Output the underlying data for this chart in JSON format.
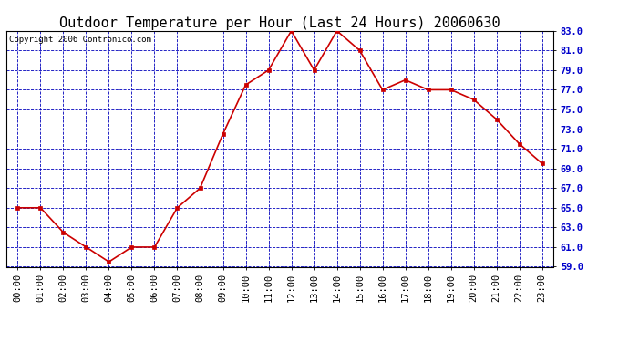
{
  "title": "Outdoor Temperature per Hour (Last 24 Hours) 20060630",
  "copyright_text": "Copyright 2006 Contronico.com",
  "hours": [
    "00:00",
    "01:00",
    "02:00",
    "03:00",
    "04:00",
    "05:00",
    "06:00",
    "07:00",
    "08:00",
    "09:00",
    "10:00",
    "11:00",
    "12:00",
    "13:00",
    "14:00",
    "15:00",
    "16:00",
    "17:00",
    "18:00",
    "19:00",
    "20:00",
    "21:00",
    "22:00",
    "23:00"
  ],
  "temperatures": [
    65.0,
    65.0,
    62.5,
    61.0,
    59.5,
    61.0,
    61.0,
    65.0,
    67.0,
    72.5,
    77.5,
    79.0,
    83.0,
    79.0,
    83.0,
    81.0,
    77.0,
    78.0,
    77.0,
    77.0,
    76.0,
    74.0,
    71.5,
    69.5
  ],
  "line_color": "#cc0000",
  "marker_color": "#cc0000",
  "marker": "s",
  "marker_size": 3,
  "line_width": 1.2,
  "background_color": "#ffffff",
  "plot_bg_color": "#ffffff",
  "grid_color": "#0000bb",
  "grid_linestyle": "--",
  "grid_linewidth": 0.6,
  "ylim": [
    59.0,
    83.0
  ],
  "yticks": [
    59.0,
    61.0,
    63.0,
    65.0,
    67.0,
    69.0,
    71.0,
    73.0,
    75.0,
    77.0,
    79.0,
    81.0,
    83.0
  ],
  "title_fontsize": 11,
  "tick_fontsize": 7.5,
  "copyright_fontsize": 6.5,
  "yticklabel_color": "#0000cc",
  "xticklabel_color": "#000000"
}
